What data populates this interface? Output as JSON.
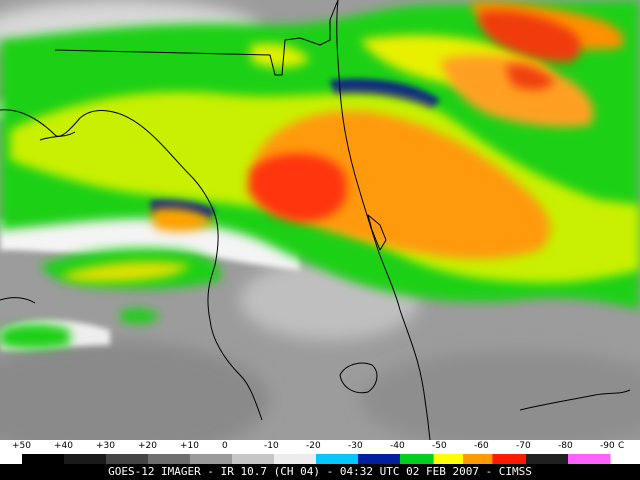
{
  "caption": "GOES-12 IMAGER - IR 10.7 (CH 04) - 04:32 UTC 02 FEB 2007 - CIMSS",
  "color_scale": {
    "unit": "C",
    "labels": [
      "+50",
      "+40",
      "+30",
      "+20",
      "+10",
      "0",
      "-10",
      "-20",
      "-30",
      "-40",
      "-50",
      "-60",
      "-70",
      "-80",
      "-90"
    ],
    "stops": [
      {
        "temp": 50,
        "color": "#000000"
      },
      {
        "temp": 40,
        "color": "#1a1a1a"
      },
      {
        "temp": 30,
        "color": "#444444"
      },
      {
        "temp": 20,
        "color": "#6e6e6e"
      },
      {
        "temp": 10,
        "color": "#9a9a9a"
      },
      {
        "temp": 0,
        "color": "#c6c6c6"
      },
      {
        "temp": -10,
        "color": "#ececec"
      },
      {
        "temp": -20,
        "color": "#00c8ff"
      },
      {
        "temp": -30,
        "color": "#0020a0"
      },
      {
        "temp": -40,
        "color": "#00d020"
      },
      {
        "temp": -48,
        "color": "#ffff00"
      },
      {
        "temp": -55,
        "color": "#ff9900"
      },
      {
        "temp": -62,
        "color": "#ff1a00"
      },
      {
        "temp": -70,
        "color": "#202020"
      },
      {
        "temp": -80,
        "color": "#ff60ff"
      },
      {
        "temp": -90,
        "color": "#ffffff"
      }
    ]
  }
}
